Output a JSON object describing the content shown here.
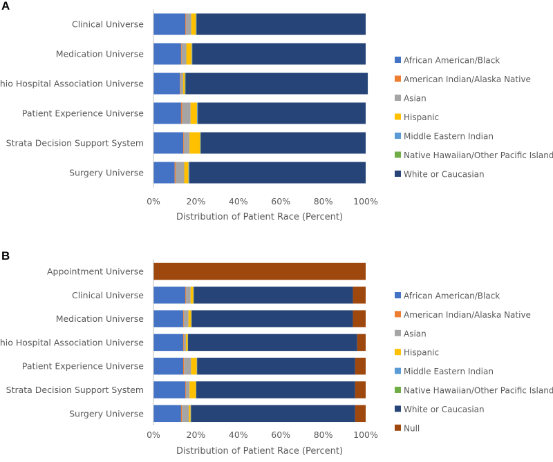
{
  "chart_data": [
    {
      "panel": "A",
      "type": "bar",
      "orientation": "horizontal",
      "stacked": "percent",
      "title": "",
      "xlabel": "Distribution of Patient Race (Percent)",
      "ylabel": "",
      "xlim": [
        0,
        100
      ],
      "xticks": [
        "0%",
        "20%",
        "40%",
        "60%",
        "80%",
        "100%"
      ],
      "grid": false,
      "legend_position": "right",
      "categories": [
        "Clinical Universe",
        "Medication Universe",
        "Ohio Hospital Association Universe",
        "Patient Experience Universe",
        "Strata Decision Support System",
        "Surgery Universe"
      ],
      "series": [
        {
          "name": "African American/Black",
          "color": "#4472c4",
          "values": [
            15,
            13,
            12.5,
            13,
            14,
            10
          ]
        },
        {
          "name": "American Indian/Alaska Native",
          "color": "#ed7d31",
          "values": [
            0.3,
            0.3,
            0.3,
            0.5,
            0.3,
            0.5
          ]
        },
        {
          "name": "Asian",
          "color": "#a5a5a5",
          "values": [
            2.5,
            2.2,
            1.2,
            4,
            2.7,
            4
          ]
        },
        {
          "name": "Hispanic",
          "color": "#ffc000",
          "values": [
            2.2,
            2.5,
            0.8,
            3,
            5,
            2
          ]
        },
        {
          "name": "Middle Eastern Indian",
          "color": "#5b9bd5",
          "values": [
            0.2,
            0.2,
            0.2,
            0.3,
            0.2,
            0.3
          ]
        },
        {
          "name": "Native Hawaiian/Other Pacific Island",
          "color": "#70ad47",
          "values": [
            0.1,
            0.1,
            0.1,
            0.1,
            0.1,
            0.1
          ]
        },
        {
          "name": "White or Caucasian",
          "color": "#264478",
          "values": [
            79.7,
            81.7,
            85.9,
            79.1,
            77.7,
            83.1
          ]
        }
      ]
    },
    {
      "panel": "B",
      "type": "bar",
      "orientation": "horizontal",
      "stacked": "percent",
      "title": "",
      "xlabel": "Distribution of Patient Race (Percent)",
      "ylabel": "",
      "xlim": [
        0,
        100
      ],
      "xticks": [
        "0%",
        "20%",
        "40%",
        "60%",
        "80%",
        "100%"
      ],
      "grid": false,
      "legend_position": "right",
      "categories": [
        "Appointment Universe",
        "Clinical Universe",
        "Medication Universe",
        "Ohio Hospital Association Universe",
        "Patient Experience Universe",
        "Strata Decision Support System",
        "Surgery Universe"
      ],
      "series": [
        {
          "name": "African American/Black",
          "color": "#4472c4",
          "values": [
            0,
            15,
            14,
            14,
            14,
            15,
            13
          ]
        },
        {
          "name": "American Indian/Alaska Native",
          "color": "#ed7d31",
          "values": [
            0,
            0.3,
            0.3,
            0.3,
            0.4,
            0.3,
            0.4
          ]
        },
        {
          "name": "Asian",
          "color": "#a5a5a5",
          "values": [
            0,
            2.2,
            2.2,
            1,
            3.3,
            1.7,
            3.3
          ]
        },
        {
          "name": "Hispanic",
          "color": "#ffc000",
          "values": [
            0,
            1.3,
            1.3,
            0.8,
            2.7,
            3,
            0.8
          ]
        },
        {
          "name": "Middle Eastern Indian",
          "color": "#5b9bd5",
          "values": [
            0,
            0.1,
            0.1,
            0.1,
            0.1,
            0.1,
            0.1
          ]
        },
        {
          "name": "Native Hawaiian/Other Pacific Island",
          "color": "#70ad47",
          "values": [
            0,
            0.1,
            0.1,
            0.1,
            0.1,
            0.1,
            0.1
          ]
        },
        {
          "name": "White or Caucasian",
          "color": "#264478",
          "values": [
            0,
            75,
            76,
            79.7,
            74.4,
            74.8,
            77.3
          ]
        },
        {
          "name": "Null",
          "color": "#9e480e",
          "values": [
            100,
            6,
            6,
            4,
            5,
            5,
            5
          ]
        }
      ]
    }
  ]
}
